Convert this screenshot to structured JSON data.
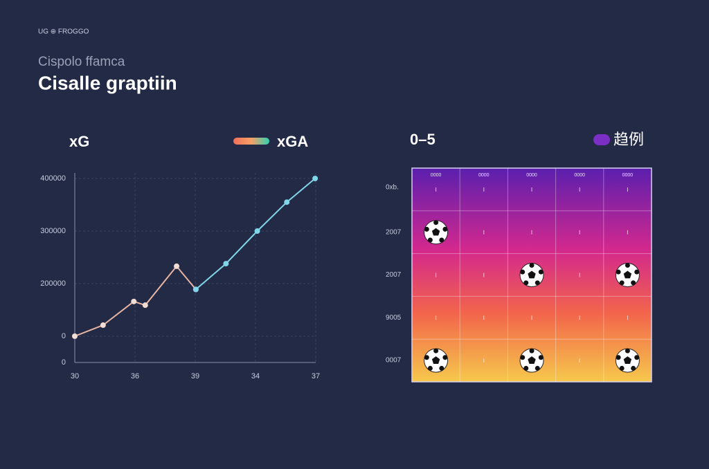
{
  "header": {
    "brand": "UG ⊕ FROGGO",
    "subtitle": "Cispolo ffamca",
    "title": "Cisalle graptiin"
  },
  "chart_data": [
    {
      "type": "line",
      "title": "xG",
      "series": [
        {
          "name": "xG",
          "color": "#e9b6a6",
          "x": [
            0,
            0.47,
            0.98,
            1.17,
            1.69,
            2.01
          ],
          "values": [
            100000,
            121000,
            166000,
            159000,
            233000,
            189000
          ]
        },
        {
          "name": "xGA",
          "color": "#7fd6e8",
          "x": [
            2.01,
            2.51,
            3.03,
            3.52,
            3.99
          ],
          "values": [
            189000,
            238000,
            300000,
            355000,
            400000
          ]
        }
      ],
      "xlim": [
        0,
        4
      ],
      "xticks": [
        {
          "value": 0,
          "label": "30"
        },
        {
          "value": 1,
          "label": "36"
        },
        {
          "value": 2,
          "label": "39"
        },
        {
          "value": 3,
          "label": "34"
        },
        {
          "value": 4,
          "label": "37"
        }
      ],
      "ylim": [
        50000,
        400000
      ],
      "yticks": [
        400000,
        300000,
        200000,
        {
          "value": 100000,
          "label": "0"
        },
        {
          "value": 50000,
          "label": "0"
        }
      ],
      "grid": true
    },
    {
      "type": "heatmap",
      "title": "0–5",
      "legend": "趋例",
      "legend_color": "#7b2fc4",
      "columns": [
        "0000",
        "0000",
        "0000",
        "0000",
        "0000"
      ],
      "rows": [
        "0xb.",
        "2007",
        "2007",
        "9005",
        "0007"
      ],
      "values": [
        [
          0,
          0,
          0,
          0,
          0
        ],
        [
          1,
          0,
          0,
          0,
          0
        ],
        [
          0,
          0,
          1,
          0,
          1
        ],
        [
          0,
          0,
          0,
          0,
          0
        ],
        [
          1,
          0,
          1,
          0,
          1
        ]
      ]
    }
  ]
}
